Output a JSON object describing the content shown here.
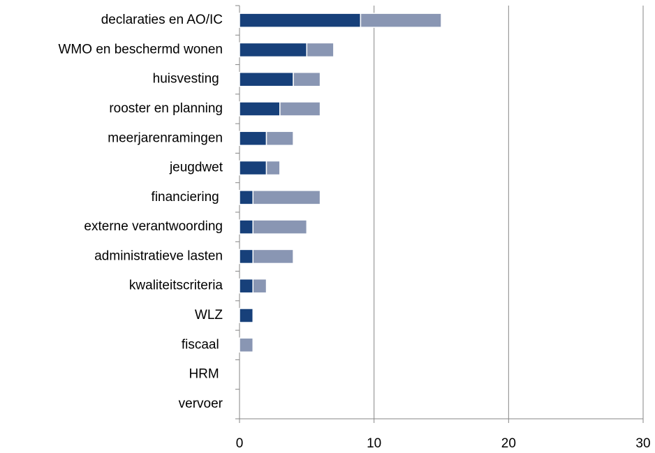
{
  "chart_data": {
    "type": "stacked_barh",
    "categories": [
      "declaraties en AO/IC",
      "WMO en beschermd wonen",
      "huisvesting ",
      "rooster en planning",
      "meerjarenramingen",
      "jeugdwet",
      "financiering ",
      "externe verantwoording",
      "administratieve lasten",
      "kwaliteitscriteria",
      "WLZ",
      "fiscaal ",
      "HRM ",
      "vervoer"
    ],
    "series": [
      {
        "color": "#17407a",
        "values": [
          9,
          5,
          4,
          3,
          2,
          2,
          1,
          1,
          1,
          1,
          1,
          0,
          0,
          0
        ]
      },
      {
        "color": "#8996b3",
        "values": [
          6,
          2,
          2,
          3,
          2,
          1,
          5,
          4,
          3,
          1,
          0,
          1,
          0,
          0
        ]
      }
    ],
    "xlim": [
      0,
      30
    ],
    "xticks": [
      0,
      10,
      20,
      30
    ],
    "grid": true
  }
}
